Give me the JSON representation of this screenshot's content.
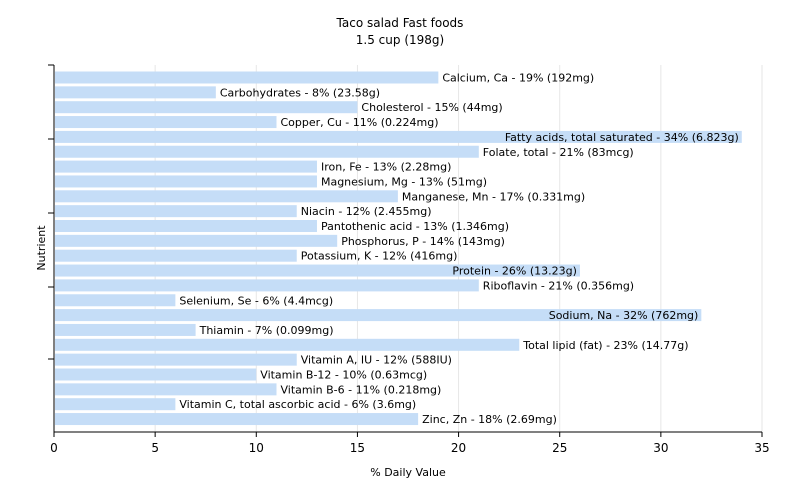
{
  "chart_data": {
    "type": "bar",
    "orientation": "horizontal",
    "title": "Taco salad Fast foods",
    "subtitle": "1.5 cup (198g)",
    "xlabel": "% Daily Value",
    "ylabel": "Nutrient",
    "xlim": [
      0,
      35
    ],
    "xticks": [
      "0",
      "5",
      "10",
      "15",
      "20",
      "25",
      "30",
      "35"
    ],
    "grid": true,
    "bar_color": "#c5ddf7",
    "categories": [
      "Calcium, Ca",
      "Carbohydrates",
      "Cholesterol",
      "Copper, Cu",
      "Fatty acids, total saturated",
      "Folate, total",
      "Iron, Fe",
      "Magnesium, Mg",
      "Manganese, Mn",
      "Niacin",
      "Pantothenic acid",
      "Phosphorus, P",
      "Potassium, K",
      "Protein",
      "Riboflavin",
      "Selenium, Se",
      "Sodium, Na",
      "Thiamin",
      "Total lipid (fat)",
      "Vitamin A, IU",
      "Vitamin B-12",
      "Vitamin B-6",
      "Vitamin C, total ascorbic acid",
      "Zinc, Zn"
    ],
    "values": [
      19,
      8,
      15,
      11,
      34,
      21,
      13,
      13,
      17,
      12,
      13,
      14,
      12,
      26,
      21,
      6,
      32,
      7,
      23,
      12,
      10,
      11,
      6,
      18
    ],
    "labels": [
      "Calcium, Ca - 19% (192mg)",
      "Carbohydrates - 8% (23.58g)",
      "Cholesterol - 15% (44mg)",
      "Copper, Cu - 11% (0.224mg)",
      "Fatty acids, total saturated - 34% (6.823g)",
      "Folate, total - 21% (83mcg)",
      "Iron, Fe - 13% (2.28mg)",
      "Magnesium, Mg - 13% (51mg)",
      "Manganese, Mn - 17% (0.331mg)",
      "Niacin - 12% (2.455mg)",
      "Pantothenic acid - 13% (1.346mg)",
      "Phosphorus, P - 14% (143mg)",
      "Potassium, K - 12% (416mg)",
      "Protein - 26% (13.23g)",
      "Riboflavin - 21% (0.356mg)",
      "Selenium, Se - 6% (4.4mcg)",
      "Sodium, Na - 32% (762mg)",
      "Thiamin - 7% (0.099mg)",
      "Total lipid (fat) - 23% (14.77g)",
      "Vitamin A, IU - 12% (588IU)",
      "Vitamin B-12 - 10% (0.63mcg)",
      "Vitamin B-6 - 11% (0.218mg)",
      "Vitamin C, total ascorbic acid - 6% (3.6mg)",
      "Zinc, Zn - 18% (2.69mg)"
    ]
  }
}
